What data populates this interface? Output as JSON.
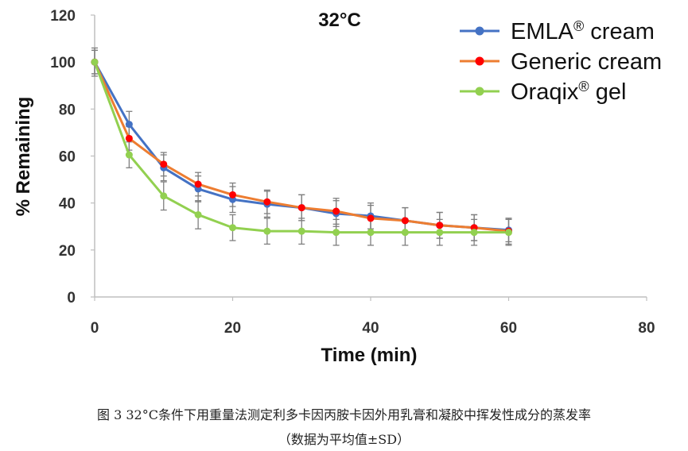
{
  "chart_data": {
    "type": "line",
    "title": "32°C",
    "xlabel": "Time (min)",
    "ylabel": "% Remaining",
    "xlim": [
      0,
      80
    ],
    "ylim": [
      0,
      120
    ],
    "xticks": [
      "0",
      "20",
      "40",
      "60",
      "80"
    ],
    "yticks": [
      "0",
      "20",
      "40",
      "60",
      "80",
      "100",
      "120"
    ],
    "grid": false,
    "legend_position": "top-right",
    "series": [
      {
        "name": "EMLA",
        "suffix": "® cream",
        "color": "#4472C4",
        "x": [
          0,
          5,
          10,
          15,
          20,
          25,
          30,
          35,
          40,
          45,
          50,
          55,
          60
        ],
        "values": [
          100,
          73.5,
          55,
          46,
          41.5,
          39.5,
          38,
          35.5,
          34.5,
          32.5,
          30.5,
          29.5,
          28.5
        ],
        "errors": [
          6,
          5.5,
          5.5,
          5.5,
          5.5,
          5.5,
          5.5,
          5.5,
          5.5,
          5.5,
          5.5,
          5.5,
          5
        ]
      },
      {
        "name": "Generic cream",
        "suffix": "",
        "color": "#ED7D31",
        "marker_color": "#FF0000",
        "x": [
          0,
          5,
          10,
          15,
          20,
          25,
          30,
          35,
          40,
          45,
          50,
          55,
          60
        ],
        "values": [
          100,
          67.5,
          56.5,
          48,
          43.5,
          40.5,
          38,
          36.5,
          33.5,
          32.5,
          30.5,
          29.5,
          28
        ],
        "errors": [
          5,
          5,
          5,
          5,
          5,
          5,
          5.5,
          5.5,
          5.5,
          5.5,
          5.5,
          5.5,
          5.5
        ]
      },
      {
        "name": "Oraqix",
        "suffix": "® gel",
        "color": "#92D050",
        "x": [
          0,
          5,
          10,
          15,
          20,
          25,
          30,
          35,
          40,
          45,
          50,
          55,
          60
        ],
        "values": [
          100,
          60.5,
          43,
          35,
          29.5,
          28,
          28,
          27.5,
          27.5,
          27.5,
          27.5,
          27.5,
          27.5
        ],
        "errors": [
          5,
          5.5,
          6,
          6,
          5.5,
          5.5,
          5.5,
          5.5,
          5.5,
          5.5,
          5.5,
          5.5,
          5.5
        ]
      }
    ]
  },
  "caption": {
    "line1": "图 3 32°C条件下用重量法测定利多卡因丙胺卡因外用乳膏和凝胶中挥发性成分的蒸发率",
    "line2": "（数据为平均值±SD）"
  }
}
